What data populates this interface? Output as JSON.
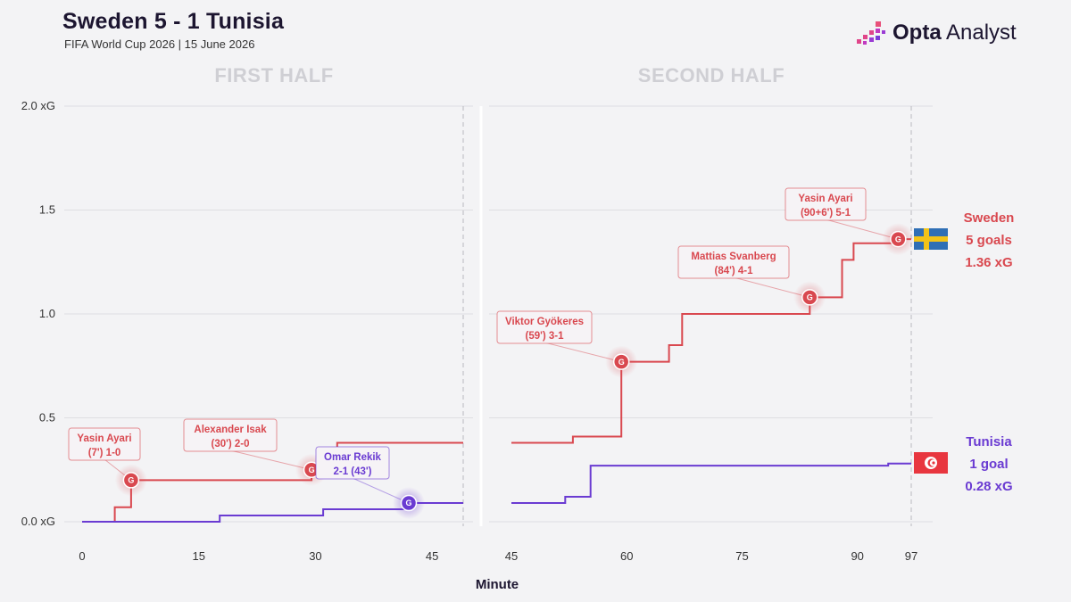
{
  "header": {
    "title": "Sweden 5 - 1 Tunisia",
    "subtitle": "FIFA World Cup 2026 | 15 June 2026",
    "brand_bold": "Opta",
    "brand_light": " Analyst"
  },
  "colors": {
    "sweden": "#d9484f",
    "tunisia": "#6a3bd2",
    "grid": "#dedee2",
    "background": "#f3f3f5"
  },
  "chart_data": {
    "type": "line",
    "step": true,
    "xlabel": "Minute",
    "ylim": [
      0,
      2.0
    ],
    "y_ticks": [
      {
        "value": 0.0,
        "label": "0.0 xG"
      },
      {
        "value": 0.5,
        "label": "0.5"
      },
      {
        "value": 1.0,
        "label": "1.0"
      },
      {
        "value": 1.5,
        "label": "1.5"
      },
      {
        "value": 2.0,
        "label": "2.0 xG"
      }
    ],
    "grid": true,
    "panels": [
      {
        "title": "FIRST HALF",
        "xlim": [
          0,
          49
        ],
        "x_ticks": [
          0,
          15,
          30,
          45
        ],
        "end_line": 49
      },
      {
        "title": "SECOND HALF",
        "xlim": [
          45,
          97
        ],
        "x_ticks": [
          45,
          60,
          75,
          90,
          97
        ],
        "end_line": 97
      }
    ],
    "series": [
      {
        "name": "Sweden",
        "team_key": "sweden",
        "points": {
          "first": [
            [
              0,
              0
            ],
            [
              4.2,
              0
            ],
            [
              4.2,
              0.07
            ],
            [
              6.3,
              0.07
            ],
            [
              6.3,
              0.2
            ],
            [
              29.5,
              0.2
            ],
            [
              29.5,
              0.25
            ],
            [
              32.8,
              0.25
            ],
            [
              32.8,
              0.38
            ],
            [
              49,
              0.38
            ]
          ],
          "second": [
            [
              45,
              0.38
            ],
            [
              53,
              0.38
            ],
            [
              53,
              0.41
            ],
            [
              59.3,
              0.41
            ],
            [
              59.3,
              0.77
            ],
            [
              65.5,
              0.77
            ],
            [
              65.5,
              0.85
            ],
            [
              67.2,
              0.85
            ],
            [
              67.2,
              1.0
            ],
            [
              83.8,
              1.0
            ],
            [
              83.8,
              1.08
            ],
            [
              88,
              1.08
            ],
            [
              88,
              1.26
            ],
            [
              89.5,
              1.26
            ],
            [
              89.5,
              1.34
            ],
            [
              95.3,
              1.34
            ],
            [
              95.3,
              1.36
            ],
            [
              97,
              1.36
            ]
          ]
        },
        "goals": [
          {
            "half": "first",
            "minute": 6.3,
            "xg": 0.2,
            "label_line1": "Yasin Ayari",
            "label_line2": "(7') 1-0"
          },
          {
            "half": "first",
            "minute": 29.5,
            "xg": 0.25,
            "label_line1": "Alexander Isak",
            "label_line2": "(30') 2-0"
          },
          {
            "half": "second",
            "minute": 59.3,
            "xg": 0.77,
            "label_line1": "Viktor Gyökeres",
            "label_line2": "(59') 3-1"
          },
          {
            "half": "second",
            "minute": 83.8,
            "xg": 1.08,
            "label_line1": "Mattias Svanberg",
            "label_line2": "(84') 4-1"
          },
          {
            "half": "second",
            "minute": 95.3,
            "xg": 1.36,
            "label_line1": "Yasin Ayari",
            "label_line2": "(90+6') 5-1"
          }
        ],
        "summary": {
          "name": "Sweden",
          "goals": "5 goals",
          "xg": "1.36 xG"
        }
      },
      {
        "name": "Tunisia",
        "team_key": "tunisia",
        "points": {
          "first": [
            [
              0,
              0
            ],
            [
              17.7,
              0
            ],
            [
              17.7,
              0.03
            ],
            [
              31,
              0.03
            ],
            [
              31,
              0.06
            ],
            [
              42,
              0.06
            ],
            [
              42,
              0.09
            ],
            [
              49,
              0.09
            ]
          ],
          "second": [
            [
              45,
              0.09
            ],
            [
              52,
              0.09
            ],
            [
              52,
              0.12
            ],
            [
              55.3,
              0.12
            ],
            [
              55.3,
              0.27
            ],
            [
              94,
              0.27
            ],
            [
              94,
              0.28
            ],
            [
              97,
              0.28
            ]
          ]
        },
        "goals": [
          {
            "half": "first",
            "minute": 42,
            "xg": 0.09,
            "label_line1": "Omar Rekik",
            "label_line2": "2-1 (43')"
          }
        ],
        "summary": {
          "name": "Tunisia",
          "goals": "1 goal",
          "xg": "0.28 xG"
        }
      }
    ]
  },
  "goal_marker_letter": "G",
  "icons": [
    "sweden-flag-icon",
    "tunisia-flag-icon",
    "opta-logo-icon"
  ]
}
